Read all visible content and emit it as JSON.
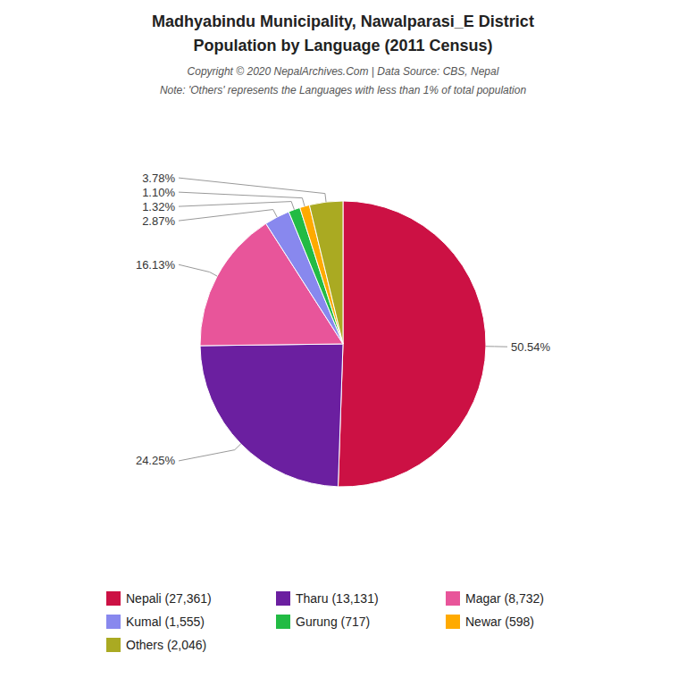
{
  "chart_data": {
    "type": "pie",
    "title": "Madhyabindu Municipality, Nawalparasi_E District",
    "subtitle": "Population by Language (2011 Census)",
    "annotations": [
      "Copyright © 2020 NepalArchives.Com | Data Source: CBS, Nepal",
      "Note: 'Others' represents the Languages with less than 1% of total population"
    ],
    "categories": [
      "Nepali (27,361)",
      "Tharu (13,131)",
      "Magar (8,732)",
      "Kumal (1,555)",
      "Gurung (717)",
      "Newar (598)",
      "Others (2,046)"
    ],
    "values": [
      50.54,
      24.25,
      16.13,
      2.87,
      1.32,
      1.1,
      3.78
    ],
    "value_labels": [
      "50.54%",
      "24.25%",
      "16.13%",
      "2.87%",
      "1.32%",
      "1.10%",
      "3.78%"
    ],
    "colors": [
      "#cc1144",
      "#6b1fa0",
      "#e8559a",
      "#8888ee",
      "#22bb44",
      "#ffaa00",
      "#aaaa22"
    ],
    "data_labels": true,
    "legend": "bottom"
  }
}
